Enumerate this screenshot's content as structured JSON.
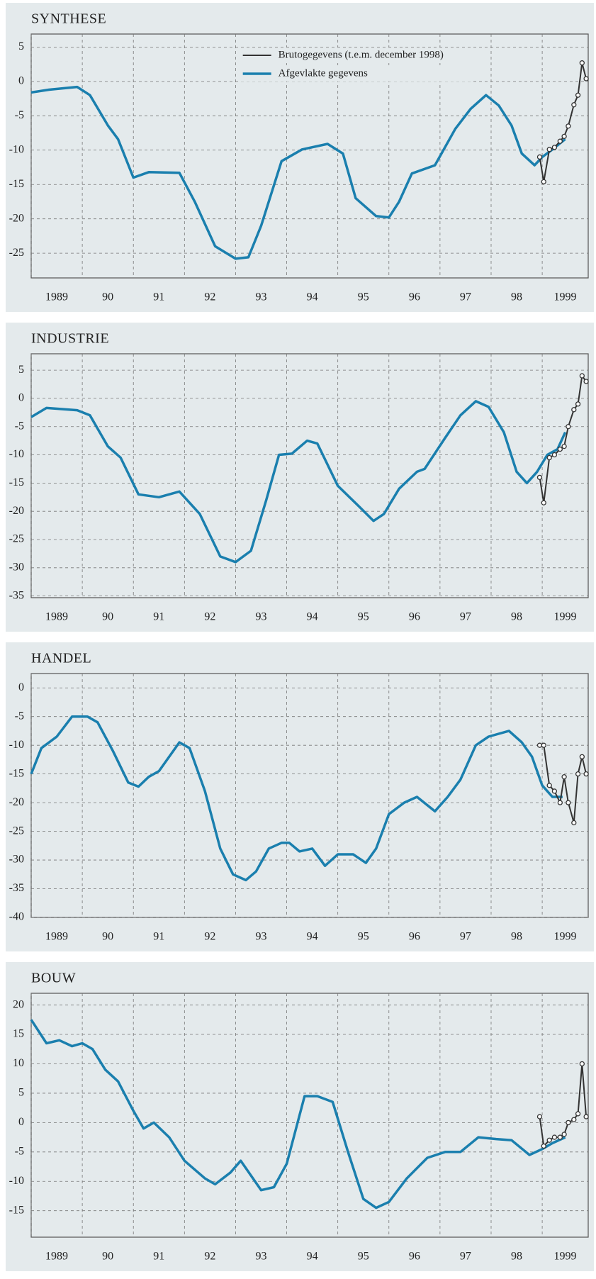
{
  "chart_data": [
    {
      "type": "line",
      "title": "SYNTHESE",
      "xlim": [
        1989,
        1999.9
      ],
      "ylim": [
        -28.6,
        6.9
      ],
      "xticks": [
        {
          "value": 1989,
          "label": "1989"
        },
        {
          "value": 1990,
          "label": "90"
        },
        {
          "value": 1991,
          "label": "91"
        },
        {
          "value": 1992,
          "label": "92"
        },
        {
          "value": 1993,
          "label": "93"
        },
        {
          "value": 1994,
          "label": "94"
        },
        {
          "value": 1995,
          "label": "95"
        },
        {
          "value": 1996,
          "label": "96"
        },
        {
          "value": 1997,
          "label": "97"
        },
        {
          "value": 1998,
          "label": "98"
        },
        {
          "value": 1999,
          "label": "1999"
        }
      ],
      "yticks": [
        5,
        0,
        -5,
        -10,
        -15,
        -20,
        -25
      ],
      "grid": true,
      "legend": "top-center",
      "series": [
        {
          "name": "Brutogegevens (t.e.m. december 1998)",
          "color": "#333333",
          "markers": true,
          "x": [
            1998.95,
            1999.03,
            1999.14,
            1999.24,
            1999.35,
            1999.43,
            1999.51,
            1999.62,
            1999.7,
            1999.78,
            1999.86
          ],
          "values": [
            -11,
            -14.6,
            -9.9,
            -9.6,
            -8.7,
            -8,
            -6.5,
            -3.4,
            -2,
            2.7,
            0.4
          ]
        },
        {
          "name": "Afgevlakte gegevens",
          "color": "#1a7fae",
          "markers": false,
          "x": [
            1989,
            1989.35,
            1989.9,
            1990.15,
            1990.5,
            1990.7,
            1991.0,
            1991.3,
            1991.9,
            1992.2,
            1992.6,
            1993.0,
            1993.25,
            1993.5,
            1993.9,
            1994.3,
            1994.8,
            1995.1,
            1995.35,
            1995.75,
            1996.0,
            1996.2,
            1996.45,
            1996.9,
            1997.3,
            1997.6,
            1997.9,
            1998.15,
            1998.4,
            1998.6,
            1998.85,
            1999.0,
            1999.2,
            1999.45
          ],
          "values": [
            -1.6,
            -1.2,
            -0.8,
            -2,
            -6.4,
            -8.4,
            -14,
            -13.2,
            -13.3,
            -17.5,
            -24,
            -25.8,
            -25.6,
            -21,
            -11.6,
            -9.9,
            -9.1,
            -10.5,
            -17,
            -19.6,
            -19.8,
            -17.5,
            -13.4,
            -12.2,
            -6.9,
            -4,
            -2,
            -3.5,
            -6.4,
            -10.5,
            -12.2,
            -11,
            -9.9,
            -8.4
          ]
        }
      ]
    },
    {
      "type": "line",
      "title": "INDUSTRIE",
      "xlim": [
        1989,
        1999.9
      ],
      "ylim": [
        -35.3,
        7.9
      ],
      "xticks": [
        {
          "value": 1989,
          "label": "1989"
        },
        {
          "value": 1990,
          "label": "90"
        },
        {
          "value": 1991,
          "label": "91"
        },
        {
          "value": 1992,
          "label": "92"
        },
        {
          "value": 1993,
          "label": "93"
        },
        {
          "value": 1994,
          "label": "94"
        },
        {
          "value": 1995,
          "label": "95"
        },
        {
          "value": 1996,
          "label": "96"
        },
        {
          "value": 1997,
          "label": "97"
        },
        {
          "value": 1998,
          "label": "98"
        },
        {
          "value": 1999,
          "label": "1999"
        }
      ],
      "yticks": [
        5,
        0,
        -5,
        -10,
        -15,
        -20,
        -25,
        -30,
        -35
      ],
      "grid": true,
      "series": [
        {
          "color": "#333333",
          "markers": true,
          "x": [
            1998.95,
            1999.03,
            1999.14,
            1999.24,
            1999.35,
            1999.43,
            1999.51,
            1999.62,
            1999.7,
            1999.78,
            1999.86
          ],
          "values": [
            -14,
            -18.5,
            -10.5,
            -10,
            -9,
            -8.5,
            -5,
            -2,
            -1,
            4,
            3
          ]
        },
        {
          "color": "#1a7fae",
          "markers": false,
          "x": [
            1989,
            1989.3,
            1989.9,
            1990.15,
            1990.5,
            1990.75,
            1991.1,
            1991.5,
            1991.9,
            1992.3,
            1992.7,
            1993.0,
            1993.3,
            1993.6,
            1993.85,
            1994.1,
            1994.4,
            1994.6,
            1995.0,
            1995.4,
            1995.7,
            1995.9,
            1996.2,
            1996.55,
            1996.7,
            1997.1,
            1997.4,
            1997.7,
            1997.95,
            1998.25,
            1998.5,
            1998.7,
            1998.9,
            1999.1,
            1999.3,
            1999.45
          ],
          "values": [
            -3.3,
            -1.7,
            -2.1,
            -3,
            -8.5,
            -10.5,
            -17,
            -17.5,
            -16.5,
            -20.5,
            -28,
            -29,
            -27,
            -18,
            -10,
            -9.8,
            -7.5,
            -8,
            -15.5,
            -19,
            -21.7,
            -20.5,
            -16,
            -13,
            -12.5,
            -7,
            -3,
            -0.5,
            -1.5,
            -6,
            -13,
            -15,
            -13,
            -10,
            -9,
            -6
          ]
        }
      ]
    },
    {
      "type": "line",
      "title": "HANDEL",
      "xlim": [
        1989,
        1999.9
      ],
      "ylim": [
        -40,
        2.5
      ],
      "xticks": [
        {
          "value": 1989,
          "label": "1989"
        },
        {
          "value": 1990,
          "label": "90"
        },
        {
          "value": 1991,
          "label": "91"
        },
        {
          "value": 1992,
          "label": "92"
        },
        {
          "value": 1993,
          "label": "93"
        },
        {
          "value": 1994,
          "label": "94"
        },
        {
          "value": 1995,
          "label": "95"
        },
        {
          "value": 1996,
          "label": "96"
        },
        {
          "value": 1997,
          "label": "97"
        },
        {
          "value": 1998,
          "label": "98"
        },
        {
          "value": 1999,
          "label": "1999"
        }
      ],
      "yticks": [
        0,
        -5,
        -10,
        -15,
        -20,
        -25,
        -30,
        -35,
        -40
      ],
      "grid": true,
      "series": [
        {
          "color": "#333333",
          "markers": true,
          "x": [
            1998.95,
            1999.03,
            1999.14,
            1999.24,
            1999.35,
            1999.43,
            1999.51,
            1999.62,
            1999.7,
            1999.78,
            1999.86
          ],
          "values": [
            -10,
            -10,
            -17,
            -18,
            -20,
            -15.5,
            -20,
            -23.5,
            -15,
            -12,
            -15
          ]
        },
        {
          "color": "#1a7fae",
          "markers": false,
          "x": [
            1989,
            1989.2,
            1989.5,
            1989.8,
            1990.1,
            1990.3,
            1990.6,
            1990.9,
            1991.1,
            1991.3,
            1991.5,
            1991.7,
            1991.9,
            1992.1,
            1992.4,
            1992.7,
            1992.95,
            1993.2,
            1993.4,
            1993.65,
            1993.9,
            1994.05,
            1994.25,
            1994.5,
            1994.75,
            1995.0,
            1995.3,
            1995.55,
            1995.75,
            1996.0,
            1996.3,
            1996.55,
            1996.9,
            1997.15,
            1997.4,
            1997.7,
            1997.95,
            1998.35,
            1998.6,
            1998.8,
            1999.0,
            1999.2,
            1999.4
          ],
          "values": [
            -15,
            -10.5,
            -8.5,
            -5,
            -5,
            -6,
            -11,
            -16.5,
            -17.2,
            -15.5,
            -14.5,
            -12,
            -9.5,
            -10.5,
            -18,
            -28,
            -32.5,
            -33.5,
            -32,
            -28,
            -27,
            -27,
            -28.5,
            -28,
            -31,
            -29,
            -29,
            -30.5,
            -28,
            -22,
            -20,
            -19,
            -21.5,
            -19,
            -16,
            -10,
            -8.5,
            -7.5,
            -9.5,
            -12,
            -17,
            -19,
            -19
          ]
        }
      ]
    },
    {
      "type": "line",
      "title": "BOUW",
      "xlim": [
        1989,
        1999.9
      ],
      "ylim": [
        -19.5,
        22
      ],
      "xticks": [
        {
          "value": 1989,
          "label": "1989"
        },
        {
          "value": 1990,
          "label": "90"
        },
        {
          "value": 1991,
          "label": "91"
        },
        {
          "value": 1992,
          "label": "92"
        },
        {
          "value": 1993,
          "label": "93"
        },
        {
          "value": 1994,
          "label": "94"
        },
        {
          "value": 1995,
          "label": "95"
        },
        {
          "value": 1996,
          "label": "96"
        },
        {
          "value": 1997,
          "label": "97"
        },
        {
          "value": 1998,
          "label": "98"
        },
        {
          "value": 1999,
          "label": "1999"
        }
      ],
      "yticks": [
        20,
        15,
        10,
        5,
        0,
        -5,
        -10,
        -15
      ],
      "grid": true,
      "series": [
        {
          "color": "#333333",
          "markers": true,
          "x": [
            1998.95,
            1999.03,
            1999.14,
            1999.24,
            1999.35,
            1999.43,
            1999.51,
            1999.62,
            1999.7,
            1999.78,
            1999.86
          ],
          "values": [
            1,
            -4,
            -3,
            -2.5,
            -2.5,
            -2,
            0,
            0.5,
            1.5,
            10,
            1
          ]
        },
        {
          "color": "#1a7fae",
          "markers": false,
          "x": [
            1989,
            1989.3,
            1989.55,
            1989.8,
            1990.0,
            1990.2,
            1990.45,
            1990.7,
            1991.0,
            1991.2,
            1991.4,
            1991.7,
            1992.0,
            1992.4,
            1992.6,
            1992.9,
            1993.1,
            1993.3,
            1993.5,
            1993.75,
            1994.0,
            1994.35,
            1994.6,
            1994.9,
            1995.2,
            1995.5,
            1995.75,
            1996.0,
            1996.35,
            1996.75,
            1997.1,
            1997.4,
            1997.75,
            1998.1,
            1998.4,
            1998.75,
            1999.0,
            1999.2,
            1999.45
          ],
          "values": [
            17.5,
            13.5,
            14,
            13,
            13.5,
            12.5,
            9,
            7,
            2,
            -1,
            0,
            -2.5,
            -6.5,
            -9.5,
            -10.5,
            -8.5,
            -6.5,
            -9,
            -11.5,
            -11,
            -7,
            4.5,
            4.5,
            3.5,
            -5,
            -13,
            -14.5,
            -13.5,
            -9.5,
            -6,
            -5,
            -5,
            -2.5,
            -2.8,
            -3,
            -5.5,
            -4.5,
            -3.5,
            -2.5
          ]
        }
      ]
    }
  ]
}
